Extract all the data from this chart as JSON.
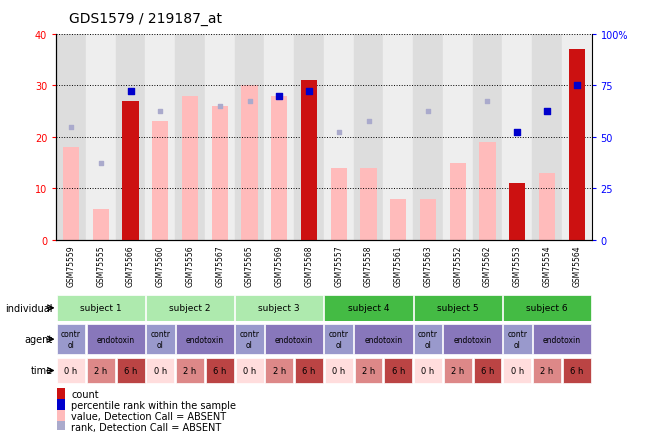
{
  "title": "GDS1579 / 219187_at",
  "samples": [
    "GSM75559",
    "GSM75555",
    "GSM75566",
    "GSM75560",
    "GSM75556",
    "GSM75567",
    "GSM75565",
    "GSM75569",
    "GSM75568",
    "GSM75557",
    "GSM75558",
    "GSM75561",
    "GSM75563",
    "GSM75552",
    "GSM75562",
    "GSM75553",
    "GSM75554",
    "GSM75564"
  ],
  "count_values": [
    null,
    null,
    27,
    null,
    null,
    null,
    null,
    null,
    31,
    null,
    null,
    null,
    null,
    null,
    null,
    11,
    null,
    37
  ],
  "value_absent": [
    18,
    6,
    null,
    23,
    28,
    26,
    30,
    28,
    null,
    14,
    14,
    8,
    8,
    15,
    19,
    null,
    13,
    null
  ],
  "rank_count_left": [
    null,
    null,
    29,
    null,
    null,
    null,
    null,
    28,
    29,
    null,
    null,
    null,
    null,
    null,
    null,
    21,
    25,
    30
  ],
  "rank_absent_left": [
    22,
    15,
    null,
    25,
    null,
    26,
    27,
    null,
    null,
    21,
    23,
    null,
    25,
    null,
    27,
    null,
    null,
    null
  ],
  "subjects": [
    {
      "label": "subject 1",
      "start": 0,
      "end": 3,
      "color": "#aeeaae"
    },
    {
      "label": "subject 2",
      "start": 3,
      "end": 6,
      "color": "#aeeaae"
    },
    {
      "label": "subject 3",
      "start": 6,
      "end": 9,
      "color": "#aeeaae"
    },
    {
      "label": "subject 4",
      "start": 9,
      "end": 12,
      "color": "#44bb44"
    },
    {
      "label": "subject 5",
      "start": 12,
      "end": 15,
      "color": "#44bb44"
    },
    {
      "label": "subject 6",
      "start": 15,
      "end": 18,
      "color": "#44bb44"
    }
  ],
  "agents": [
    {
      "label": "contr\nol",
      "start": 0,
      "end": 1,
      "color": "#9999cc"
    },
    {
      "label": "endotoxin",
      "start": 1,
      "end": 3,
      "color": "#8877bb"
    },
    {
      "label": "contr\nol",
      "start": 3,
      "end": 4,
      "color": "#9999cc"
    },
    {
      "label": "endotoxin",
      "start": 4,
      "end": 6,
      "color": "#8877bb"
    },
    {
      "label": "contr\nol",
      "start": 6,
      "end": 7,
      "color": "#9999cc"
    },
    {
      "label": "endotoxin",
      "start": 7,
      "end": 9,
      "color": "#8877bb"
    },
    {
      "label": "contr\nol",
      "start": 9,
      "end": 10,
      "color": "#9999cc"
    },
    {
      "label": "endotoxin",
      "start": 10,
      "end": 12,
      "color": "#8877bb"
    },
    {
      "label": "contr\nol",
      "start": 12,
      "end": 13,
      "color": "#9999cc"
    },
    {
      "label": "endotoxin",
      "start": 13,
      "end": 15,
      "color": "#8877bb"
    },
    {
      "label": "contr\nol",
      "start": 15,
      "end": 16,
      "color": "#9999cc"
    },
    {
      "label": "endotoxin",
      "start": 16,
      "end": 18,
      "color": "#8877bb"
    }
  ],
  "times": [
    {
      "label": "0 h",
      "color": "#ffdddd"
    },
    {
      "label": "2 h",
      "color": "#dd8888"
    },
    {
      "label": "6 h",
      "color": "#bb4444"
    },
    {
      "label": "0 h",
      "color": "#ffdddd"
    },
    {
      "label": "2 h",
      "color": "#dd8888"
    },
    {
      "label": "6 h",
      "color": "#bb4444"
    },
    {
      "label": "0 h",
      "color": "#ffdddd"
    },
    {
      "label": "2 h",
      "color": "#dd8888"
    },
    {
      "label": "6 h",
      "color": "#bb4444"
    },
    {
      "label": "0 h",
      "color": "#ffdddd"
    },
    {
      "label": "2 h",
      "color": "#dd8888"
    },
    {
      "label": "6 h",
      "color": "#bb4444"
    },
    {
      "label": "0 h",
      "color": "#ffdddd"
    },
    {
      "label": "2 h",
      "color": "#dd8888"
    },
    {
      "label": "6 h",
      "color": "#bb4444"
    },
    {
      "label": "0 h",
      "color": "#ffdddd"
    },
    {
      "label": "2 h",
      "color": "#dd8888"
    },
    {
      "label": "6 h",
      "color": "#bb4444"
    }
  ],
  "ylim": [
    0,
    40
  ],
  "yticks": [
    0,
    10,
    20,
    30,
    40
  ],
  "y2ticks_labels": [
    "0",
    "25",
    "50",
    "75",
    "100%"
  ],
  "bar_color_count": "#cc1111",
  "bar_color_absent": "#ffbbbb",
  "scatter_color_rank_count": "#0000cc",
  "scatter_color_rank_absent": "#aaaacc",
  "legend_items": [
    {
      "label": "count",
      "color": "#cc1111"
    },
    {
      "label": "percentile rank within the sample",
      "color": "#0000cc"
    },
    {
      "label": "value, Detection Call = ABSENT",
      "color": "#ffbbbb"
    },
    {
      "label": "rank, Detection Call = ABSENT",
      "color": "#aaaacc"
    }
  ],
  "sample_col_color": "#cccccc",
  "bar_width": 0.55,
  "title_fontsize": 10,
  "axis_label_fontsize": 7,
  "tick_fontsize": 7,
  "legend_fontsize": 7
}
